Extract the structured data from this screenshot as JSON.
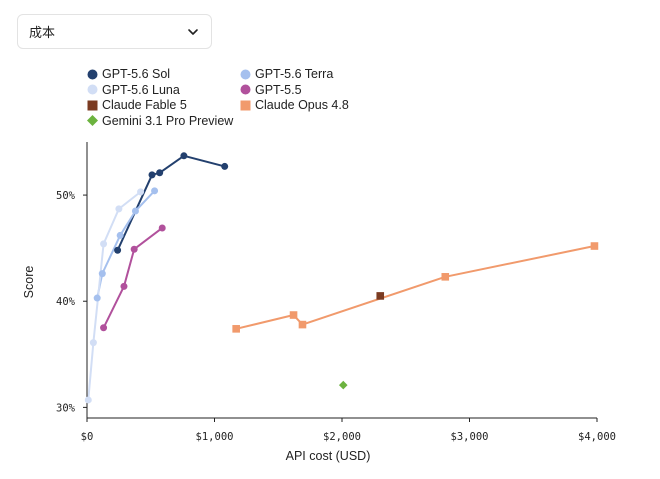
{
  "dropdown": {
    "selected": "成本"
  },
  "chart_data": {
    "type": "scatter",
    "xlabel": "API cost (USD)",
    "ylabel": "Score",
    "xlim": [
      0,
      4000
    ],
    "ylim": [
      0.29,
      0.55
    ],
    "xticks": [
      0,
      1000,
      2000,
      3000,
      4000
    ],
    "xtick_labels": [
      "$0",
      "$1,000",
      "$2,000",
      "$3,000",
      "$4,000"
    ],
    "yticks": [
      0.3,
      0.4,
      0.5
    ],
    "ytick_labels": [
      "30%",
      "40%",
      "50%"
    ],
    "grid": false,
    "legend_position": "top-left",
    "series": [
      {
        "name": "GPT-5.6 Sol",
        "color": "#23406e",
        "marker": "circle",
        "line": true,
        "points": [
          [
            240,
            0.448
          ],
          [
            510,
            0.519
          ],
          [
            570,
            0.521
          ],
          [
            760,
            0.537
          ],
          [
            1080,
            0.527
          ]
        ]
      },
      {
        "name": "GPT-5.6 Terra",
        "color": "#a5c0ee",
        "marker": "circle",
        "line": true,
        "points": [
          [
            80,
            0.403
          ],
          [
            120,
            0.426
          ],
          [
            260,
            0.462
          ],
          [
            380,
            0.485
          ],
          [
            530,
            0.504
          ]
        ]
      },
      {
        "name": "GPT-5.6 Luna",
        "color": "#d2def5",
        "marker": "circle",
        "line": true,
        "points": [
          [
            10,
            0.307
          ],
          [
            50,
            0.361
          ],
          [
            130,
            0.454
          ],
          [
            250,
            0.487
          ],
          [
            420,
            0.503
          ]
        ]
      },
      {
        "name": "GPT-5.5",
        "color": "#b1519c",
        "marker": "circle",
        "line": true,
        "points": [
          [
            130,
            0.375
          ],
          [
            290,
            0.414
          ],
          [
            370,
            0.449
          ],
          [
            590,
            0.469
          ]
        ]
      },
      {
        "name": "Claude Fable 5",
        "color": "#7b3b22",
        "marker": "square",
        "line": false,
        "points": [
          [
            2300,
            0.405
          ]
        ]
      },
      {
        "name": "Claude Opus 4.8",
        "color": "#f19a6c",
        "marker": "square",
        "line": true,
        "points": [
          [
            1170,
            0.374
          ],
          [
            1620,
            0.387
          ],
          [
            1690,
            0.378
          ],
          [
            2810,
            0.423
          ],
          [
            3980,
            0.452
          ]
        ]
      },
      {
        "name": "Gemini 3.1 Pro Preview",
        "color": "#6cb33f",
        "marker": "diamond",
        "line": false,
        "points": [
          [
            2010,
            0.321
          ]
        ]
      }
    ]
  },
  "legend": {
    "rows": [
      [
        "GPT-5.6 Sol",
        "GPT-5.6 Terra"
      ],
      [
        "GPT-5.6 Luna",
        "GPT-5.5"
      ],
      [
        "Claude Fable 5",
        "Claude Opus 4.8"
      ],
      [
        "Gemini 3.1 Pro Preview"
      ]
    ]
  }
}
